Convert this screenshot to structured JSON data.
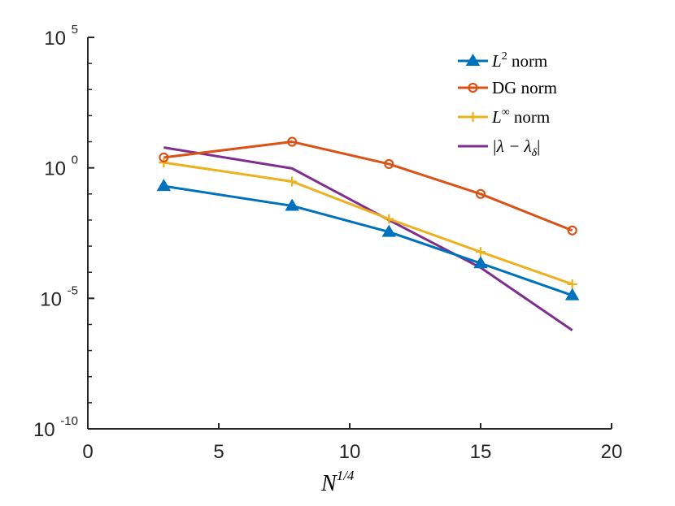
{
  "chart_data": {
    "type": "line",
    "title": "",
    "xlabel": "N^{1/4}",
    "xlabel_base": "N",
    "xlabel_sup": "1/4",
    "ylabel": "",
    "xlim": [
      0,
      20
    ],
    "ylim_log10": [
      -10,
      5
    ],
    "yscale": "log",
    "grid": false,
    "legend_position": "top-right",
    "x_ticks": [
      "0",
      "5",
      "10",
      "15",
      "20"
    ],
    "y_ticks": [
      {
        "base": "10",
        "exp": "5"
      },
      {
        "base": "10",
        "exp": "0"
      },
      {
        "base": "10",
        "exp": "-5"
      },
      {
        "base": "10",
        "exp": "-10"
      }
    ],
    "series": [
      {
        "name": "L^2 norm",
        "legend_main": "L",
        "legend_sup": "2",
        "legend_rest": " norm",
        "color": "#0072BD",
        "marker": "triangle",
        "x": [
          2.9,
          7.8,
          11.5,
          15.0,
          18.5
        ],
        "y": [
          0.2,
          0.035,
          0.0035,
          0.00022,
          1.3e-05
        ]
      },
      {
        "name": "DG norm",
        "legend_text": "DG norm",
        "color": "#D95319",
        "marker": "circle",
        "x": [
          2.9,
          7.8,
          11.5,
          15.0,
          18.5
        ],
        "y": [
          2.5,
          10.0,
          1.4,
          0.1,
          0.004
        ]
      },
      {
        "name": "L^∞ norm",
        "legend_main": "L",
        "legend_sup": "∞",
        "legend_rest": " norm",
        "color": "#EDB120",
        "marker": "plus",
        "x": [
          2.9,
          7.8,
          11.5,
          15.0,
          18.5
        ],
        "y": [
          1.6,
          0.3,
          0.011,
          0.0006,
          3.5e-05
        ]
      },
      {
        "name": "|λ − λδ|",
        "legend_text": "|λ − λ",
        "legend_sub": "δ",
        "legend_close": "|",
        "color": "#7E2F8E",
        "marker": "none",
        "x": [
          2.9,
          7.8,
          11.5,
          15.0,
          18.5
        ],
        "y": [
          6.0,
          0.95,
          0.01,
          0.00015,
          6e-07
        ]
      }
    ]
  }
}
